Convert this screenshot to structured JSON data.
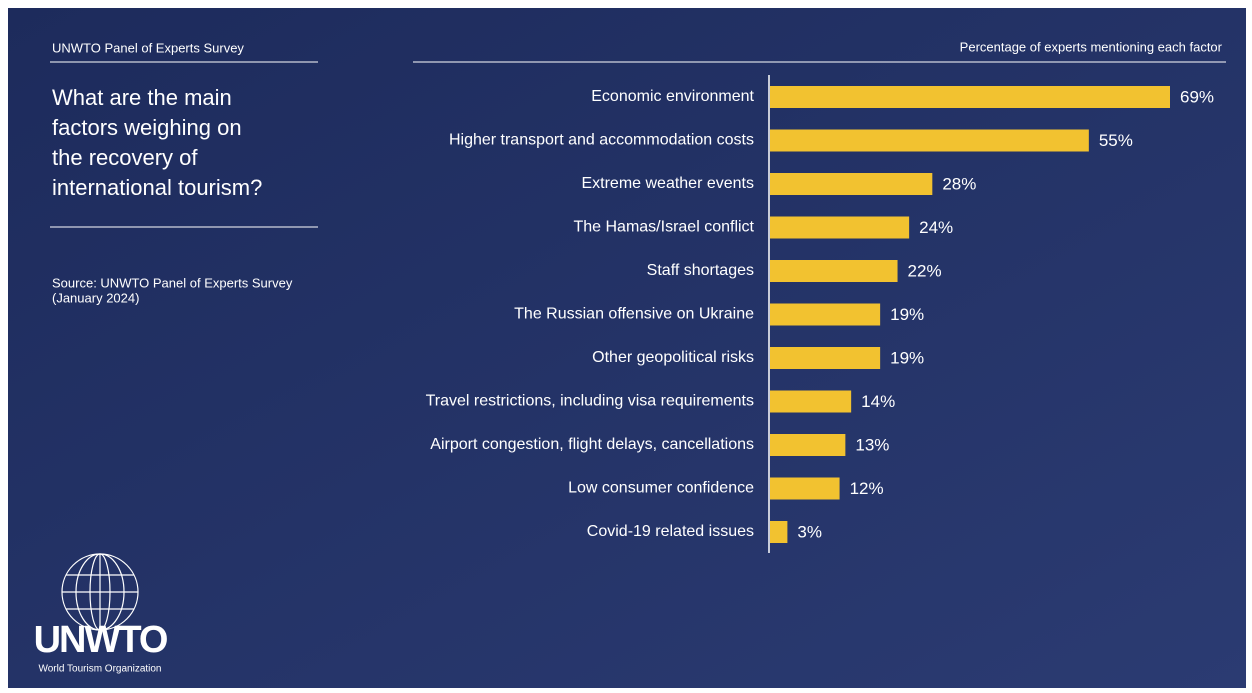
{
  "header": {
    "kicker": "UNWTO Panel of Experts Survey"
  },
  "title_lines": [
    "What are the main",
    "factors weighing on",
    "the recovery of",
    "international tourism?"
  ],
  "source_lines": [
    "Source: UNWTO Panel of Experts Survey",
    "(January 2024)"
  ],
  "logo": {
    "name": "UNWTO",
    "subtitle": "World Tourism Organization"
  },
  "chart_data": {
    "type": "hbar",
    "subtitle": "Percentage of experts mentioning each factor",
    "categories": [
      "Economic environment",
      "Higher transport and accommodation costs",
      "Extreme weather events",
      "The Hamas/Israel conflict",
      "Staff shortages",
      "The Russian offensive on Ukraine",
      "Other geopolitical risks",
      "Travel restrictions, including visa requirements",
      "Airport congestion, flight delays, cancellations",
      "Low consumer confidence",
      "Covid-19 related issues"
    ],
    "values": [
      69,
      55,
      28,
      24,
      22,
      19,
      19,
      14,
      13,
      12,
      3
    ],
    "value_labels": [
      "69%",
      "55%",
      "28%",
      "24%",
      "22%",
      "19%",
      "19%",
      "14%",
      "13%",
      "12%",
      "3%"
    ],
    "color": "#f2c230"
  }
}
